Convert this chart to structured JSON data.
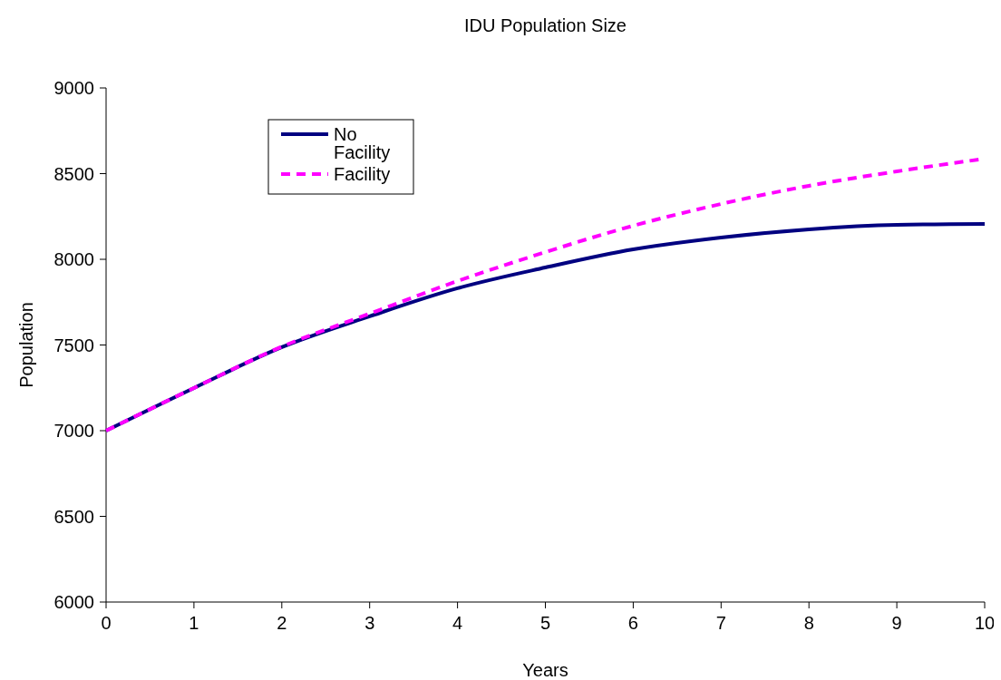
{
  "chart_data": {
    "type": "line",
    "title": "IDU Population Size",
    "xlabel": "Years",
    "ylabel": "Population",
    "x": [
      0,
      1,
      2,
      3,
      4,
      5,
      6,
      7,
      8,
      9,
      10
    ],
    "series": [
      {
        "name": "No Facility",
        "color": "#000080",
        "line_style": "solid",
        "values": [
          7000,
          7249,
          7487,
          7667,
          7831,
          7952,
          8058,
          8127,
          8175,
          8201,
          8206
        ]
      },
      {
        "name": "Facility",
        "color": "#ff00ff",
        "line_style": "dashed",
        "values": [
          7000,
          7249,
          7490,
          7683,
          7873,
          8042,
          8196,
          8323,
          8429,
          8513,
          8587
        ]
      }
    ],
    "xlim": [
      0,
      10
    ],
    "xticks": [
      0,
      1,
      2,
      3,
      4,
      5,
      6,
      7,
      8,
      9,
      10
    ],
    "ylim": [
      6000,
      9000
    ],
    "yticks": [
      6000,
      6500,
      7000,
      7500,
      8000,
      8500,
      9000
    ],
    "grid": false,
    "legend": "top left",
    "marker": "none"
  }
}
